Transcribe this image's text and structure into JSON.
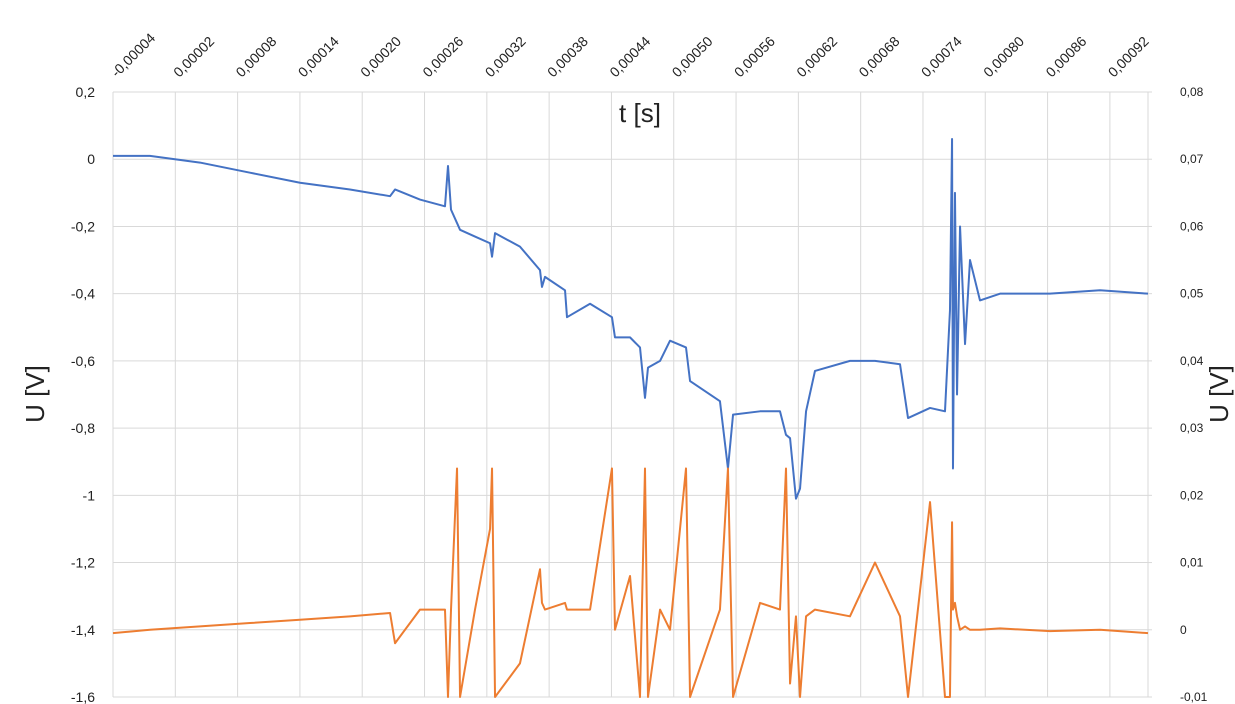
{
  "chart_data": {
    "type": "line",
    "x_label": "t [s]",
    "y_label": "U [V]",
    "y2_label": "U [V]",
    "x": [
      -4e-05,
      -4.4e-06,
      4.38e-05,
      9.19e-05,
      0.0001401,
      0.0001882,
      0.0002268,
      0.0002316,
      0.0002556,
      0.0002797,
      0.0002826,
      0.0002855,
      0.0002913,
      0.0002942,
      0.0003086,
      0.0003231,
      0.000325,
      0.0003279,
      0.0003519,
      0.0003712,
      0.0003731,
      0.000376,
      0.0003953,
      0.0003972,
      0.0004194,
      0.0004405,
      0.0004434,
      0.0004579,
      0.0004675,
      0.0004723,
      0.0004752,
      0.0004868,
      0.0004964,
      0.0005118,
      0.0005157,
      0.0005445,
      0.0005522,
      0.0005571,
      0.0005831,
      0.0006023,
      0.0006081,
      0.000612,
      0.0006177,
      0.0006216,
      0.0006274,
      0.000636,
      0.0006697,
      0.0006938,
      0.0007179,
      0.0007256,
      0.0007468,
      0.0007612,
      0.000766,
      0.000768,
      0.0007689,
      0.0007708,
      0.0007728,
      0.0007757,
      0.0007805,
      0.0007853,
      0.0007949,
      0.0008142,
      0.0008623,
      0.0009105,
      0.0009567
    ],
    "series": [
      {
        "color": "#4472c4",
        "axis": "y",
        "values": [
          0.01,
          0.01,
          -0.01,
          -0.04,
          -0.07,
          -0.09,
          -0.11,
          -0.09,
          -0.12,
          -0.14,
          -0.02,
          -0.15,
          -0.19,
          -0.21,
          -0.23,
          -0.25,
          -0.29,
          -0.22,
          -0.26,
          -0.33,
          -0.38,
          -0.35,
          -0.39,
          -0.47,
          -0.43,
          -0.47,
          -0.53,
          -0.53,
          -0.56,
          -0.71,
          -0.62,
          -0.6,
          -0.54,
          -0.56,
          -0.66,
          -0.72,
          -0.92,
          -0.76,
          -0.75,
          -0.75,
          -0.82,
          -0.83,
          -1.01,
          -0.98,
          -0.75,
          -0.63,
          -0.6,
          -0.6,
          -0.61,
          -0.77,
          -0.74,
          -0.75,
          -0.45,
          0.06,
          -0.92,
          -0.1,
          -0.7,
          -0.2,
          -0.55,
          -0.3,
          -0.42,
          -0.4,
          -0.4,
          -0.39,
          -0.4
        ]
      },
      {
        "color": "#ed7d31",
        "axis": "y2",
        "values": [
          -0.0005,
          0,
          0.0005,
          0.001,
          0.0015,
          0.002,
          0.0025,
          -0.002,
          0.003,
          0.003,
          -0.01,
          0.003,
          0.024,
          -0.01,
          0.003,
          0.015,
          0.024,
          -0.01,
          -0.005,
          0.009,
          0.004,
          0.003,
          0.004,
          0.003,
          0.003,
          0.024,
          0,
          0.008,
          -0.01,
          0.024,
          -0.01,
          0.003,
          0,
          0.024,
          -0.01,
          0.003,
          0.024,
          -0.01,
          0.004,
          0.003,
          0.024,
          -0.008,
          0.002,
          -0.01,
          0.002,
          0.003,
          0.002,
          0.01,
          0.002,
          -0.01,
          0.019,
          -0.01,
          -0.01,
          0.016,
          0.003,
          0.004,
          0.002,
          0,
          0.0005,
          0,
          0,
          0.0002,
          -0.0002,
          0,
          -0.0005
        ]
      }
    ],
    "xlim": [
      -4e-05,
      0.0009567
    ],
    "xticks": [
      {
        "value": -4e-05,
        "label": "-0,00004"
      },
      {
        "value": 2e-05,
        "label": "0,00002"
      },
      {
        "value": 8e-05,
        "label": "0,00008"
      },
      {
        "value": 0.00014,
        "label": "0,00014"
      },
      {
        "value": 0.0002,
        "label": "0,00020"
      },
      {
        "value": 0.00026,
        "label": "0,00026"
      },
      {
        "value": 0.00032,
        "label": "0,00032"
      },
      {
        "value": 0.00038,
        "label": "0,00038"
      },
      {
        "value": 0.00044,
        "label": "0,00044"
      },
      {
        "value": 0.0005,
        "label": "0,00050"
      },
      {
        "value": 0.00056,
        "label": "0,00056"
      },
      {
        "value": 0.00062,
        "label": "0,00062"
      },
      {
        "value": 0.00068,
        "label": "0,00068"
      },
      {
        "value": 0.00074,
        "label": "0,00074"
      },
      {
        "value": 0.0008,
        "label": "0,00080"
      },
      {
        "value": 0.00086,
        "label": "0,00086"
      },
      {
        "value": 0.00092,
        "label": "0,00092"
      }
    ],
    "ylim": [
      -1.6,
      0.2
    ],
    "yticks": [
      {
        "value": 0.2,
        "label": "0,2"
      },
      0,
      {
        "value": -0.2,
        "label": "-0,2"
      },
      {
        "value": -0.4,
        "label": "-0,4"
      },
      {
        "value": -0.6,
        "label": "-0,6"
      },
      {
        "value": -0.8,
        "label": "-0,8"
      },
      -1,
      {
        "value": -1.2,
        "label": "-1,2"
      },
      {
        "value": -1.4,
        "label": "-1,4"
      },
      {
        "value": -1.6,
        "label": "-1,6"
      }
    ],
    "y2lim": [
      -0.01,
      0.08
    ],
    "y2ticks": [
      {
        "value": 0.08,
        "label": "0,08"
      },
      {
        "value": 0.07,
        "label": "0,07"
      },
      {
        "value": 0.06,
        "label": "0,06"
      },
      {
        "value": 0.05,
        "label": "0,05"
      },
      {
        "value": 0.04,
        "label": "0,04"
      },
      {
        "value": 0.03,
        "label": "0,03"
      },
      {
        "value": 0.02,
        "label": "0,02"
      },
      {
        "value": 0.01,
        "label": "0,01"
      },
      0,
      {
        "value": -0.01,
        "label": "-0,01"
      }
    ],
    "grid": true
  }
}
